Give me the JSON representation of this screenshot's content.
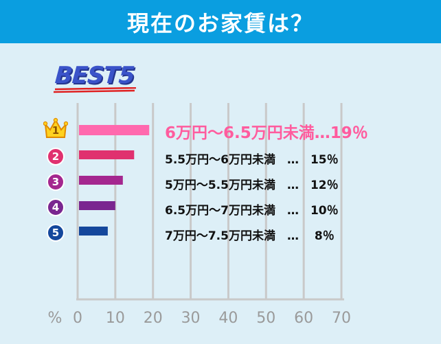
{
  "header": {
    "title": "現在のお家賃は？"
  },
  "badge": {
    "best_label": "BEST5"
  },
  "chart_data": {
    "type": "bar",
    "orientation": "horizontal",
    "categories": [
      "6万円〜6.5万円未満",
      "5.5万円〜6万円未満",
      "5万円〜5.5万円未満",
      "6.5万円〜7万円未満",
      "7万円〜7.5万円未満"
    ],
    "values": [
      19,
      15,
      12,
      10,
      8
    ],
    "ranks": [
      "1",
      "2",
      "3",
      "4",
      "5"
    ],
    "labels": [
      "6万円〜6.5万円未満…19％",
      "5.5万円〜6万円未満　…　15％",
      "5万円〜5.5万円未満　…　12％",
      "6.5万円〜7万円未満　…　10％",
      "7万円〜7.5万円未満　…　 8％"
    ],
    "bar_colors": [
      "#ff69ae",
      "#e0316f",
      "#a4278f",
      "#7a2690",
      "#14479c"
    ],
    "xlim": [
      0,
      70
    ],
    "x_ticks": [
      "0",
      "10",
      "20",
      "30",
      "40",
      "50",
      "60",
      "70"
    ],
    "xlabel": "%",
    "grid": true
  }
}
